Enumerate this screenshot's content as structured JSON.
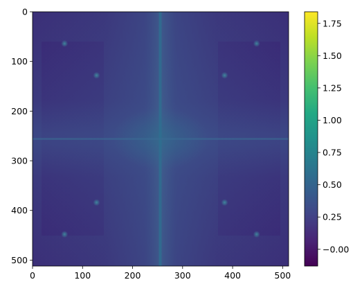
{
  "chart_data": {
    "type": "heatmap",
    "title": "",
    "xlabel": "",
    "ylabel": "",
    "image_shape": [
      512,
      512
    ],
    "colormap": "viridis",
    "xlim": [
      0,
      512
    ],
    "ylim": [
      512,
      0
    ],
    "xticks": [
      0,
      100,
      200,
      300,
      400,
      500
    ],
    "yticks": [
      0,
      100,
      200,
      300,
      400,
      500
    ],
    "colorbar": {
      "range": [
        -0.13,
        1.84
      ],
      "ticks": [
        -0.0,
        0.25,
        0.5,
        0.75,
        1.0,
        1.25,
        1.5,
        1.75
      ],
      "tick_labels": [
        "−0.00",
        "0.25",
        "0.50",
        "0.75",
        "1.00",
        "1.25",
        "1.50",
        "1.75"
      ]
    },
    "features": {
      "background_level": 0.05,
      "center_cross": {
        "x": 256,
        "y": 256,
        "peak_value": 0.45
      },
      "bright_bands_level": 0.25,
      "dot_positions": [
        [
          64,
          64
        ],
        [
          128,
          128
        ],
        [
          384,
          128
        ],
        [
          448,
          64
        ],
        [
          64,
          448
        ],
        [
          128,
          384
        ],
        [
          384,
          384
        ],
        [
          448,
          448
        ]
      ],
      "dot_value": 0.4
    }
  }
}
